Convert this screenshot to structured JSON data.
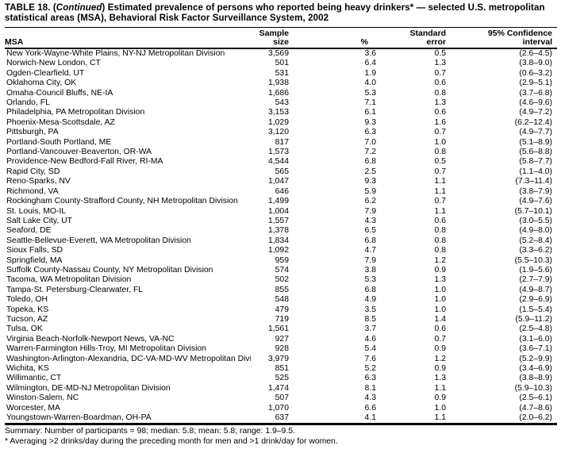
{
  "table": {
    "title_prefix": "TABLE 18. (",
    "title_italic": "Continued",
    "title_suffix": ") Estimated prevalence of persons who reported being heavy drinkers* — selected U.S. metropolitan statistical areas (MSA), Behavioral Risk Factor Surveillance System, 2002",
    "columns": {
      "msa": "MSA",
      "sample_size": "Sample\nsize",
      "percent": "%",
      "standard_error": "Standard\nerror",
      "confidence_interval": "95% Confidence\ninterval"
    },
    "rows": [
      [
        "New York-Wayne-White Plains, NY-NJ Metropolitan Division",
        "3,569",
        "3.6",
        "0.5",
        "(2.6–4.5)"
      ],
      [
        "Norwich-New London, CT",
        "501",
        "6.4",
        "1.3",
        "(3.8–9.0)"
      ],
      [
        "Ogden-Clearfield, UT",
        "531",
        "1.9",
        "0.7",
        "(0.6–3.2)"
      ],
      [
        "Oklahoma City, OK",
        "1,938",
        "4.0",
        "0.6",
        "(2.9–5.1)"
      ],
      [
        "Omaha-Council Bluffs, NE-IA",
        "1,686",
        "5.3",
        "0.8",
        "(3.7–6.8)"
      ],
      [
        "Orlando, FL",
        "543",
        "7.1",
        "1.3",
        "(4.6–9.6)"
      ],
      [
        "Philadelphia, PA Metropolitan Division",
        "3,153",
        "6.1",
        "0.6",
        "(4.9–7.2)"
      ],
      [
        "Phoenix-Mesa-Scottsdale, AZ",
        "1,029",
        "9.3",
        "1.6",
        "(6.2–12.4)"
      ],
      [
        "Pittsburgh, PA",
        "3,120",
        "6.3",
        "0.7",
        "(4.9–7.7)"
      ],
      [
        "Portland-South Portland, ME",
        "817",
        "7.0",
        "1.0",
        "(5.1–8.9)"
      ],
      [
        "Portland-Vancouver-Beaverton, OR-WA",
        "1,573",
        "7.2",
        "0.8",
        "(5.6–8.8)"
      ],
      [
        "Providence-New Bedford-Fall River, RI-MA",
        "4,544",
        "6.8",
        "0.5",
        "(5.8–7.7)"
      ],
      [
        "Rapid City, SD",
        "565",
        "2.5",
        "0.7",
        "(1.1–4.0)"
      ],
      [
        "Reno-Sparks, NV",
        "1,047",
        "9.3",
        "1.1",
        "(7.3–11.4)"
      ],
      [
        "Richmond, VA",
        "646",
        "5.9",
        "1.1",
        "(3.8–7.9)"
      ],
      [
        "Rockingham County-Strafford County, NH Metropolitan Division",
        "1,499",
        "6.2",
        "0.7",
        "(4.9–7.6)"
      ],
      [
        "St. Louis, MO-IL",
        "1,004",
        "7.9",
        "1.1",
        "(5.7–10.1)"
      ],
      [
        "Salt Lake City, UT",
        "1,557",
        "4.3",
        "0.6",
        "(3.0–5.5)"
      ],
      [
        "Seaford, DE",
        "1,378",
        "6.5",
        "0.8",
        "(4.9–8.0)"
      ],
      [
        "Seattle-Bellevue-Everett, WA Metropolitan Division",
        "1,834",
        "6.8",
        "0.8",
        "(5.2–8.4)"
      ],
      [
        "Sioux Falls, SD",
        "1,092",
        "4.7",
        "0.8",
        "(3.3–6.2)"
      ],
      [
        "Springfield, MA",
        "959",
        "7.9",
        "1.2",
        "(5.5–10.3)"
      ],
      [
        "Suffolk County-Nassau County, NY Metropolitan Division",
        "574",
        "3.8",
        "0.9",
        "(1.9–5.6)"
      ],
      [
        "Tacoma, WA Metropolitan Division",
        "502",
        "5.3",
        "1.3",
        "(2.7–7.9)"
      ],
      [
        "Tampa-St. Petersburg-Clearwater, FL",
        "855",
        "6.8",
        "1.0",
        "(4.9–8.7)"
      ],
      [
        "Toledo, OH",
        "548",
        "4.9",
        "1.0",
        "(2.9–6.9)"
      ],
      [
        "Topeka, KS",
        "479",
        "3.5",
        "1.0",
        "(1.5–5.4)"
      ],
      [
        "Tucson, AZ",
        "719",
        "8.5",
        "1.4",
        "(5.9–11.2)"
      ],
      [
        "Tulsa, OK",
        "1,561",
        "3.7",
        "0.6",
        "(2.5–4.8)"
      ],
      [
        "Virginia Beach-Norfolk-Newport News, VA-NC",
        "927",
        "4.6",
        "0.7",
        "(3.1–6.0)"
      ],
      [
        "Warren-Farmington Hills-Troy, MI Metropolitan Division",
        "928",
        "5.4",
        "0.9",
        "(3.6–7.1)"
      ],
      [
        "Washington-Arlington-Alexandria, DC-VA-MD-WV Metropolitan Division",
        "3,979",
        "7.6",
        "1.2",
        "(5.2–9.9)"
      ],
      [
        "Wichita, KS",
        "851",
        "5.2",
        "0.9",
        "(3.4–6.9)"
      ],
      [
        "Willimantic, CT",
        "525",
        "6.3",
        "1.3",
        "(3.8–8.9)"
      ],
      [
        "Wilmington, DE-MD-NJ Metropolitan Division",
        "1,474",
        "8.1",
        "1.1",
        "(5.9–10.3)"
      ],
      [
        "Winston-Salem, NC",
        "507",
        "4.3",
        "0.9",
        "(2.5–6.1)"
      ],
      [
        "Worcester, MA",
        "1,070",
        "6.6",
        "1.0",
        "(4.7–8.6)"
      ],
      [
        "Youngstown-Warren-Boardman, OH-PA",
        "637",
        "4.1",
        "1.1",
        "(2.0–6.2)"
      ]
    ],
    "summary": "Summary: Number of participants = 98; median: 5.8; mean: 5.8; range: 1.9–9.5.",
    "footnote": "* Averaging >2 drinks/day during the preceding month for men and >1 drink/day for women."
  }
}
